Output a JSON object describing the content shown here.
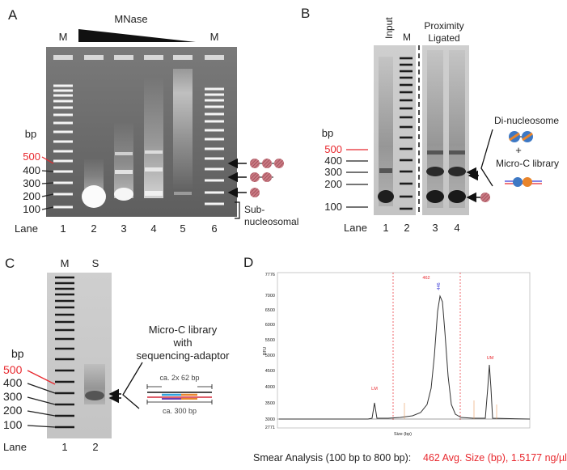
{
  "panels": {
    "a": {
      "letter": "A",
      "mnase_label": "MNase",
      "marker_left": "M",
      "marker_right": "M",
      "bp_unit": "bp",
      "bp_ticks": [
        "500",
        "400",
        "300",
        "200",
        "100"
      ],
      "lane_word": "Lane",
      "lanes": [
        "1",
        "2",
        "3",
        "4",
        "5",
        "6"
      ],
      "sub_nucleosomal": [
        "Sub-",
        "nucleosomal"
      ]
    },
    "b": {
      "letter": "B",
      "input_label": "Input",
      "marker": "M",
      "proximity_label": [
        "Proximity",
        "Ligated"
      ],
      "bp_unit": "bp",
      "bp_ticks": [
        "500",
        "400",
        "300",
        "200",
        "100"
      ],
      "lane_word": "Lane",
      "lanes": [
        "1",
        "2",
        "3",
        "4"
      ],
      "di_nucleosome": "Di-nucleosome",
      "plus": "+",
      "micro_c_library": "Micro-C library"
    },
    "c": {
      "letter": "C",
      "marker": "M",
      "sample": "S",
      "bp_unit": "bp",
      "bp_ticks": [
        "500",
        "400",
        "300",
        "200",
        "100"
      ],
      "lane_word": "Lane",
      "lanes": [
        "1",
        "2"
      ],
      "library_title": [
        "Micro-C library",
        "with",
        "sequencing-adaptor"
      ],
      "dim_top": "ca. 2x 62 bp",
      "dim_bottom": "ca. 300 bp"
    },
    "d": {
      "letter": "D",
      "y_ticks": [
        "7776",
        "7000",
        "6500",
        "6000",
        "5500",
        "5000",
        "4500",
        "4000",
        "3500",
        "3000",
        "2771"
      ],
      "y_label": "RFU",
      "x_label": "Size (bp)",
      "peak_top_label": "462",
      "peak_value_label": "446",
      "lm_label": "LM",
      "um_label": "UM",
      "summary_prefix": "Smear Analysis (100 bp to 800 bp):",
      "summary_values": "462 Avg. Size (bp),  1.5177 ng/µl"
    }
  }
}
